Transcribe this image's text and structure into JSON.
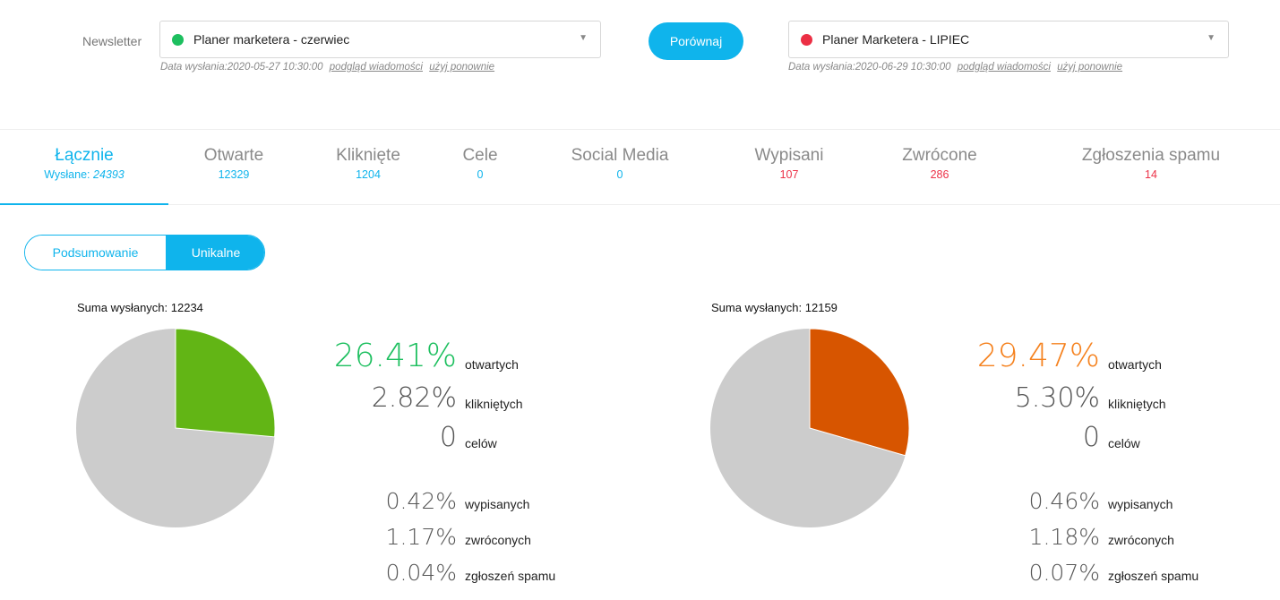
{
  "header": {
    "newsletter_label": "Newsletter",
    "compare_button": "Porównaj",
    "left": {
      "name": "Planer marketera - czerwiec",
      "dot_color": "#1dbf5f",
      "sent_info": "Data wysłania:2020-05-27 10:30:00",
      "preview_link": "podgląd wiadomości",
      "reuse_link": "użyj ponownie"
    },
    "right": {
      "name": "Planer Marketera - LIPIEC",
      "dot_color": "#ec2f44",
      "sent_info": "Data wysłania:2020-06-29 10:30:00",
      "preview_link": "podgląd wiadomości",
      "reuse_link": "użyj ponownie"
    }
  },
  "tabs": [
    {
      "label": "Łącznie",
      "value_prefix": "Wysłane: ",
      "value": "24393"
    },
    {
      "label": "Otwarte",
      "value": "12329"
    },
    {
      "label": "Kliknięte",
      "value": "1204"
    },
    {
      "label": "Cele",
      "value": "0"
    },
    {
      "label": "Social Media",
      "value": "0"
    },
    {
      "label": "Wypisani",
      "value": "107"
    },
    {
      "label": "Zwrócone",
      "value": "286"
    },
    {
      "label": "Zgłoszenia spamu",
      "value": "14"
    }
  ],
  "toggle": {
    "summary": "Podsumowanie",
    "unique": "Unikalne"
  },
  "panels": [
    {
      "total_label": "Suma wysłanych: 12234",
      "accent_color": "#62b515",
      "pie_fraction": 0.2641,
      "stats": {
        "opened": {
          "value": "26.41%",
          "label": "otwartych"
        },
        "clicked": {
          "value": "2.82%",
          "label": "klikniętych"
        },
        "goals": {
          "value": "0",
          "label": "celów"
        },
        "unsub": {
          "value": "0.42%",
          "label": "wypisanych"
        },
        "bounced": {
          "value": "1.17%",
          "label": "zwróconych"
        },
        "spam": {
          "value": "0.04%",
          "label": "zgłoszeń spamu"
        }
      }
    },
    {
      "total_label": "Suma wysłanych: 12159",
      "accent_color": "#d75500",
      "opened_color": "#f5821f",
      "pie_fraction": 0.2947,
      "stats": {
        "opened": {
          "value": "29.47%",
          "label": "otwartych"
        },
        "clicked": {
          "value": "5.30%",
          "label": "klikniętych"
        },
        "goals": {
          "value": "0",
          "label": "celów"
        },
        "unsub": {
          "value": "0.46%",
          "label": "wypisanych"
        },
        "bounced": {
          "value": "1.18%",
          "label": "zwróconych"
        },
        "spam": {
          "value": "0.07%",
          "label": "zgłoszeń spamu"
        }
      }
    }
  ]
}
